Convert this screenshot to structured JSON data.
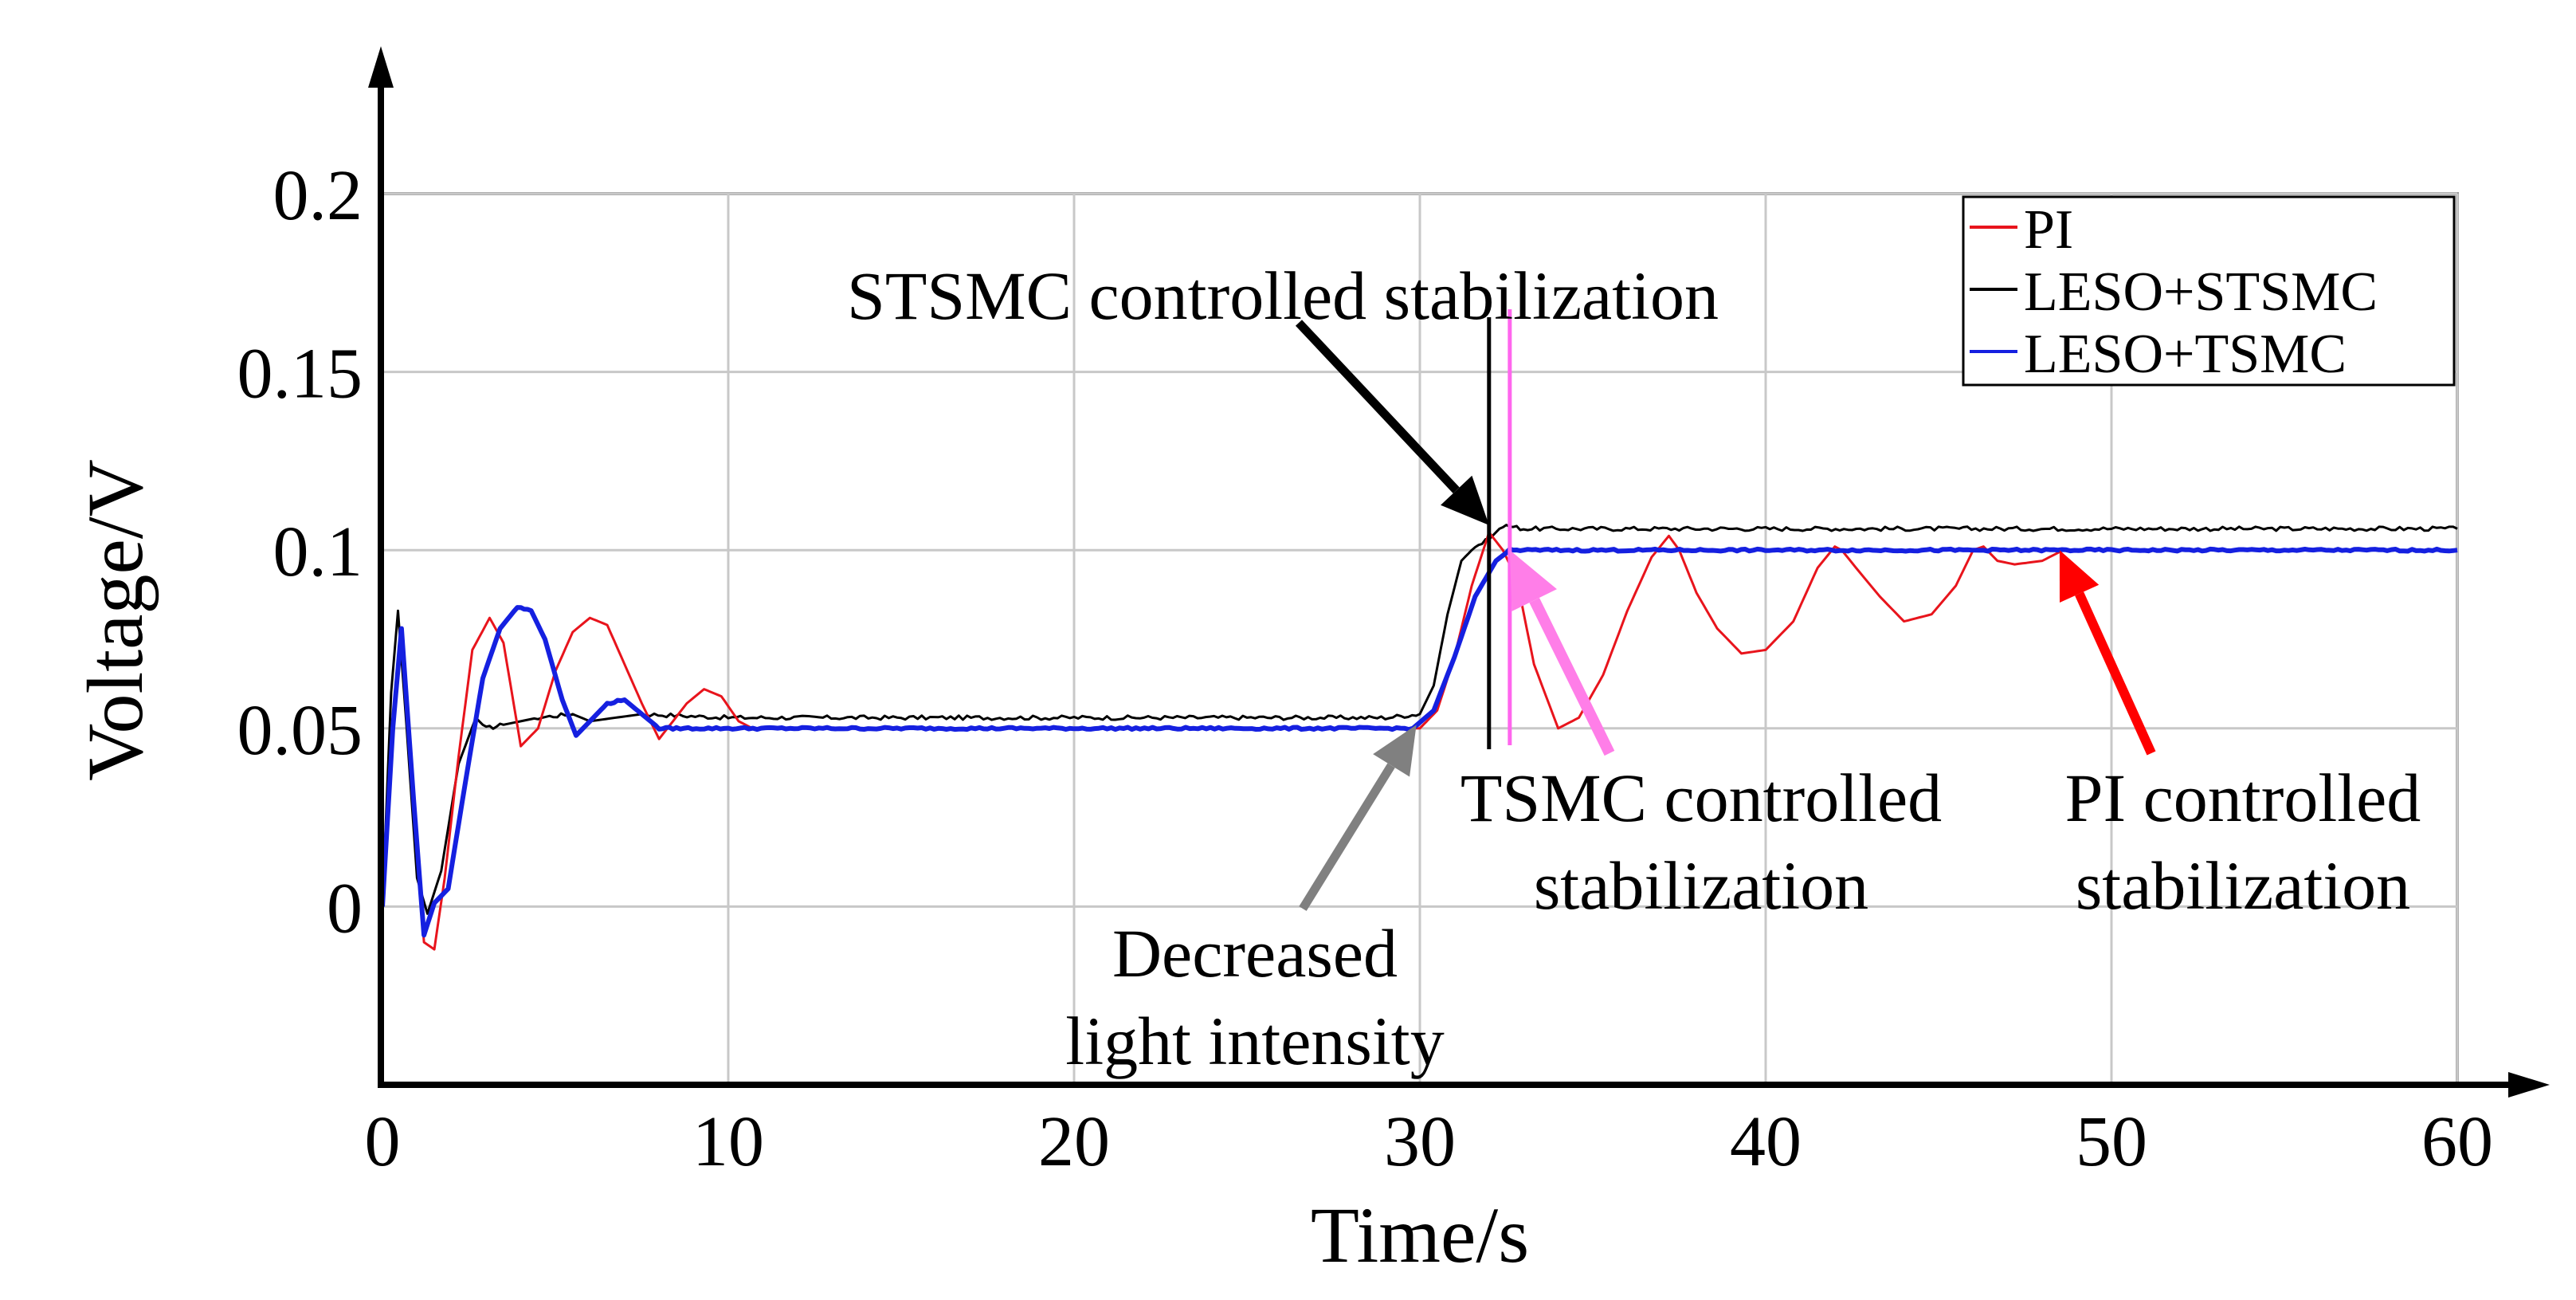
{
  "chart_data": {
    "type": "line",
    "xlabel": "Time/s",
    "ylabel": "Voltage/V",
    "xlim": [
      0,
      60
    ],
    "ylim": [
      -0.05,
      0.2
    ],
    "x_ticks": [
      0,
      10,
      20,
      30,
      40,
      50,
      60
    ],
    "x_tick_labels": [
      "0",
      "10",
      "20",
      "30",
      "40",
      "50",
      "60"
    ],
    "y_ticks": [
      0,
      0.05,
      0.1,
      0.15,
      0.2
    ],
    "y_tick_labels": [
      "0",
      "0.05",
      "0.1",
      "0.15",
      "0.2"
    ],
    "grid": true,
    "legend_position": "top-right",
    "series": [
      {
        "name": "PI",
        "color": "#e8141c",
        "x": [
          0,
          0.3,
          0.55,
          0.9,
          1.2,
          1.5,
          1.8,
          2.2,
          2.6,
          3.1,
          3.5,
          4.0,
          4.5,
          5.0,
          5.5,
          6.0,
          6.5,
          7.0,
          7.5,
          8.0,
          8.4,
          8.8,
          9.3,
          9.8,
          10.3,
          10.7,
          10.8,
          30.0,
          30.5,
          31.0,
          31.5,
          32.0,
          32.4,
          32.8,
          33.3,
          34.0,
          34.6,
          35.3,
          36.0,
          36.7,
          37.2,
          37.5,
          38.0,
          38.6,
          39.3,
          40.0,
          40.8,
          41.5,
          42.0,
          42.2,
          42.7,
          43.3,
          44.0,
          44.8,
          45.5,
          46.0,
          46.3,
          46.7,
          47.2,
          48.0,
          48.6,
          49.2,
          50.0,
          55.0,
          60.0
        ],
        "values": [
          0.0,
          0.05,
          0.078,
          0.03,
          -0.01,
          -0.012,
          0.008,
          0.042,
          0.072,
          0.081,
          0.074,
          0.045,
          0.05,
          0.066,
          0.077,
          0.081,
          0.079,
          0.068,
          0.057,
          0.047,
          0.052,
          0.057,
          0.061,
          0.059,
          0.052,
          0.05,
          0.05,
          0.05,
          0.055,
          0.07,
          0.09,
          0.105,
          0.1,
          0.092,
          0.068,
          0.05,
          0.053,
          0.065,
          0.083,
          0.098,
          0.104,
          0.1,
          0.088,
          0.078,
          0.071,
          0.072,
          0.08,
          0.095,
          0.101,
          0.1,
          0.094,
          0.087,
          0.08,
          0.082,
          0.09,
          0.1,
          0.101,
          0.097,
          0.096,
          0.097,
          0.1,
          0.1,
          0.1,
          0.1,
          0.1
        ]
      },
      {
        "name": "LESO+STSMC",
        "color": "#000000",
        "x": [
          0,
          0.25,
          0.45,
          0.7,
          1.0,
          1.3,
          1.7,
          2.2,
          2.7,
          3.0,
          3.5,
          4.5,
          5.5,
          6.0,
          7.5,
          10.0,
          15.0,
          20.0,
          25.0,
          29.0,
          30.0,
          30.4,
          30.8,
          31.2,
          31.6,
          32.0,
          32.4,
          33.0,
          35.0,
          40.0,
          45.0,
          50.0,
          55.0,
          60.0
        ],
        "values": [
          0.0,
          0.06,
          0.083,
          0.05,
          0.008,
          -0.002,
          0.01,
          0.04,
          0.053,
          0.05,
          0.051,
          0.053,
          0.054,
          0.052,
          0.054,
          0.053,
          0.053,
          0.053,
          0.053,
          0.053,
          0.054,
          0.062,
          0.082,
          0.097,
          0.101,
          0.103,
          0.107,
          0.106,
          0.106,
          0.106,
          0.106,
          0.106,
          0.106,
          0.106
        ]
      },
      {
        "name": "LESO+TSMC",
        "color": "#1520e0",
        "x": [
          0,
          0.3,
          0.55,
          0.9,
          1.2,
          1.5,
          1.9,
          2.4,
          2.9,
          3.4,
          3.9,
          4.3,
          4.7,
          5.2,
          5.6,
          6.0,
          6.5,
          7.0,
          7.5,
          8.0,
          8.5,
          10.0,
          20.0,
          29.8,
          30.4,
          31.0,
          31.6,
          32.2,
          32.6,
          33.0,
          40.0,
          50.0,
          60.0
        ],
        "values": [
          0.0,
          0.05,
          0.078,
          0.03,
          -0.008,
          0.001,
          0.005,
          0.035,
          0.064,
          0.078,
          0.084,
          0.083,
          0.075,
          0.058,
          0.048,
          0.052,
          0.057,
          0.058,
          0.054,
          0.05,
          0.05,
          0.05,
          0.05,
          0.05,
          0.055,
          0.07,
          0.087,
          0.097,
          0.1,
          0.1,
          0.1,
          0.1,
          0.1
        ]
      }
    ],
    "vertical_markers": [
      {
        "x": 32.0,
        "color": "#000000"
      },
      {
        "x": 32.6,
        "color": "#ff66ee"
      }
    ],
    "annotations": [
      {
        "lines": [
          "STSMC controlled stabilization"
        ],
        "color": "#000000",
        "arrow_to": [
          32.0,
          0.107
        ]
      },
      {
        "lines": [
          "TSMC controlled",
          "stabilization"
        ],
        "color": "#ff7ee8",
        "arrow_to": [
          32.6,
          0.1
        ]
      },
      {
        "lines": [
          "PI controlled",
          "stabilization"
        ],
        "color": "#ff0000",
        "arrow_to": [
          48.5,
          0.1
        ]
      },
      {
        "lines": [
          "Decreased",
          "light intensity"
        ],
        "color": "#808080",
        "arrow_to": [
          29.9,
          0.051
        ]
      }
    ]
  }
}
